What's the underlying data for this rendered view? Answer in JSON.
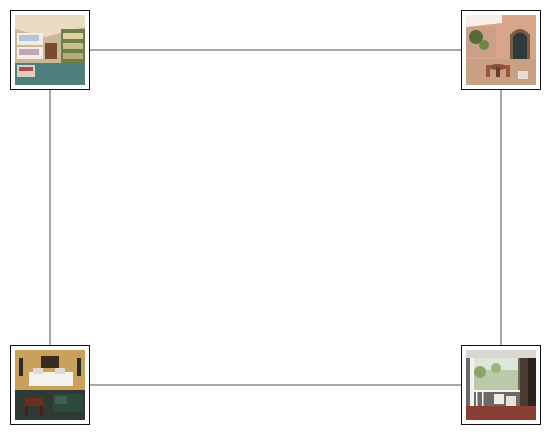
{
  "gallery": {
    "line_color": "#888888",
    "frame_color": "#111111",
    "thumbnails": [
      {
        "position": "top-left",
        "subject": "bedroom-with-bunk-beds-photo"
      },
      {
        "position": "top-right",
        "subject": "house-courtyard-patio-photo"
      },
      {
        "position": "bottom-left",
        "subject": "living-room-with-bed-and-sofa-photo"
      },
      {
        "position": "bottom-right",
        "subject": "covered-porch-with-chairs-photo"
      }
    ]
  }
}
